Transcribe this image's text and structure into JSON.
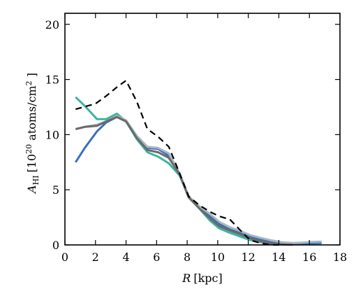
{
  "chart_data": {
    "type": "line",
    "xlabel_var": "R",
    "xlabel_unit": "[kpc]",
    "ylabel_var": "A",
    "ylabel_sub": "HI",
    "ylabel_unit_pre": "[10",
    "ylabel_unit_exp": "20",
    "ylabel_unit_mid": " atoms/cm",
    "ylabel_unit_exp2": "2",
    "ylabel_unit_post": " ]",
    "xlim": [
      0,
      18
    ],
    "ylim": [
      0,
      21
    ],
    "xticks": [
      "0",
      "2",
      "4",
      "6",
      "8",
      "10",
      "12",
      "14",
      "16",
      "18"
    ],
    "yticks": [
      "0",
      "5",
      "10",
      "15",
      "20"
    ],
    "grid": false,
    "series": [
      {
        "color": "#3cb4a0",
        "style": "solid",
        "x": [
          0.7,
          1.3,
          2.1,
          2.7,
          3.4,
          4.0,
          4.7,
          5.4,
          6.1,
          6.8,
          7.5,
          8.1,
          8.8,
          9.5,
          10.1,
          10.8,
          11.5,
          12.1,
          12.8,
          13.5,
          14.2,
          14.9,
          15.5,
          16.2,
          16.8
        ],
        "y": [
          13.4,
          12.6,
          11.4,
          11.4,
          11.9,
          11.2,
          9.6,
          8.4,
          8.0,
          7.4,
          6.3,
          4.4,
          3.3,
          2.2,
          1.5,
          1.1,
          0.75,
          0.45,
          0.25,
          0.12,
          0.05,
          0.05,
          0.07,
          0.12,
          0.15
        ]
      },
      {
        "color": "#3a6fc0",
        "style": "solid",
        "x": [
          0.7,
          1.3,
          2.1,
          2.7,
          3.4,
          4.0,
          4.7,
          5.4,
          6.1,
          6.8,
          7.5,
          8.1,
          8.8,
          9.5,
          10.1,
          10.8,
          11.5,
          12.1,
          12.8,
          13.5,
          14.2,
          14.9,
          15.5,
          16.2,
          16.8
        ],
        "y": [
          7.5,
          8.8,
          10.3,
          11.1,
          11.6,
          11.2,
          9.8,
          8.8,
          8.7,
          8.1,
          6.4,
          4.3,
          3.4,
          2.6,
          1.9,
          1.4,
          1.1,
          0.75,
          0.5,
          0.3,
          0.15,
          0.1,
          0.12,
          0.18,
          0.22
        ]
      },
      {
        "color": "#a8b8c4",
        "style": "solid",
        "x": [
          0.7,
          1.3,
          2.1,
          2.7,
          3.4,
          4.0,
          4.7,
          5.4,
          6.1,
          6.8,
          7.5,
          8.1,
          8.8,
          9.5,
          10.1,
          10.8,
          11.5,
          12.1,
          12.8,
          13.5,
          14.2,
          14.9,
          15.5,
          16.2,
          16.8
        ],
        "y": [
          10.5,
          10.7,
          10.9,
          11.2,
          11.7,
          11.3,
          9.9,
          8.9,
          8.8,
          8.3,
          6.5,
          4.4,
          3.5,
          2.8,
          2.1,
          1.6,
          1.25,
          0.9,
          0.65,
          0.42,
          0.25,
          0.18,
          0.2,
          0.28,
          0.3
        ]
      },
      {
        "color": "#6a6a6a",
        "style": "solid",
        "x": [
          0.7,
          1.3,
          2.1,
          2.7,
          3.4,
          4.0,
          4.7,
          5.4,
          6.1,
          6.8,
          7.5,
          8.1,
          8.8,
          9.5,
          10.1,
          10.8,
          11.5,
          12.1,
          12.8,
          13.5,
          14.2,
          14.9
        ],
        "y": [
          10.5,
          10.7,
          10.8,
          11.2,
          11.6,
          11.2,
          9.7,
          8.6,
          8.4,
          7.9,
          6.4,
          4.3,
          3.3,
          2.4,
          1.7,
          1.3,
          0.95,
          0.6,
          0.35,
          0.15,
          0.05,
          0.02
        ]
      },
      {
        "color": "#000000",
        "style": "dashed",
        "x": [
          0.7,
          2.0,
          2.7,
          3.4,
          4.0,
          4.7,
          5.4,
          6.1,
          6.8,
          7.5,
          8.1,
          8.8,
          9.5,
          10.1,
          10.8,
          11.5,
          12.1,
          12.8,
          13.5,
          14.2
        ],
        "y": [
          12.3,
          12.8,
          13.5,
          14.3,
          14.9,
          13.0,
          10.5,
          9.8,
          8.9,
          6.5,
          4.4,
          3.6,
          3.0,
          2.6,
          2.3,
          1.3,
          0.45,
          0.15,
          0.0,
          0.0
        ]
      }
    ]
  }
}
